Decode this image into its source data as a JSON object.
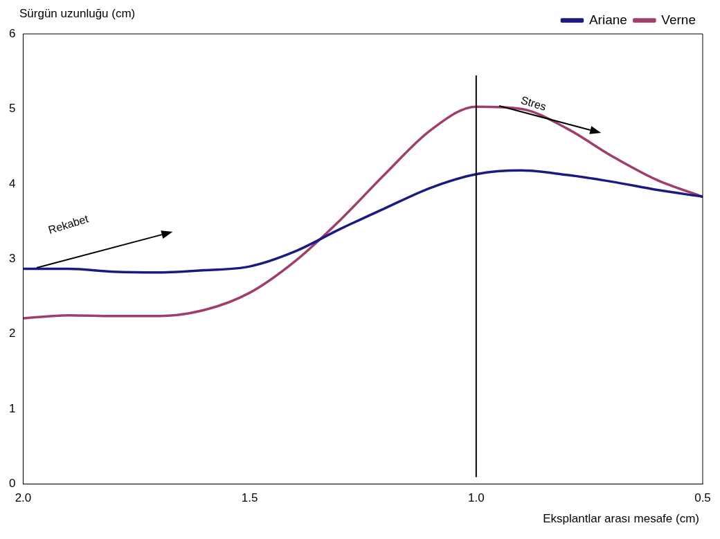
{
  "chart_data": {
    "type": "line",
    "xlabel": "Eksplantlar arası mesafe (cm)",
    "ylabel": "Sürgün uzunluğu (cm)",
    "xlim": [
      2.0,
      0.5
    ],
    "xticks": [
      {
        "value": 2.0,
        "label": "2.0"
      },
      {
        "value": 1.5,
        "label": "1.5"
      },
      {
        "value": 1.0,
        "label": "1.0"
      },
      {
        "value": 0.5,
        "label": "0.5"
      }
    ],
    "ylim": [
      0,
      6
    ],
    "yticks": [
      0,
      1,
      2,
      3,
      4,
      5,
      6
    ],
    "x": [
      2.0,
      1.9,
      1.8,
      1.7,
      1.6,
      1.5,
      1.4,
      1.3,
      1.2,
      1.1,
      1.0,
      0.9,
      0.8,
      0.7,
      0.6,
      0.5
    ],
    "series": [
      {
        "name": "Ariane",
        "color": "#1a1a80",
        "values": [
          2.87,
          2.87,
          2.83,
          2.82,
          2.85,
          2.9,
          3.1,
          3.4,
          3.68,
          3.95,
          4.13,
          4.18,
          4.12,
          4.03,
          3.92,
          3.83
        ]
      },
      {
        "name": "Verne",
        "color": "#9e3d6e",
        "values": [
          2.21,
          2.25,
          2.24,
          2.24,
          2.32,
          2.55,
          2.97,
          3.52,
          4.14,
          4.72,
          5.03,
          5.0,
          4.74,
          4.37,
          4.05,
          3.83
        ]
      }
    ],
    "ref_lines": [
      {
        "axis": "x",
        "value": 1.0,
        "color": "#000000"
      }
    ],
    "annotations": [
      "Rekabet",
      "Stres"
    ],
    "legend": "top right",
    "grid": false,
    "marker": "none",
    "line_style": "solid"
  }
}
